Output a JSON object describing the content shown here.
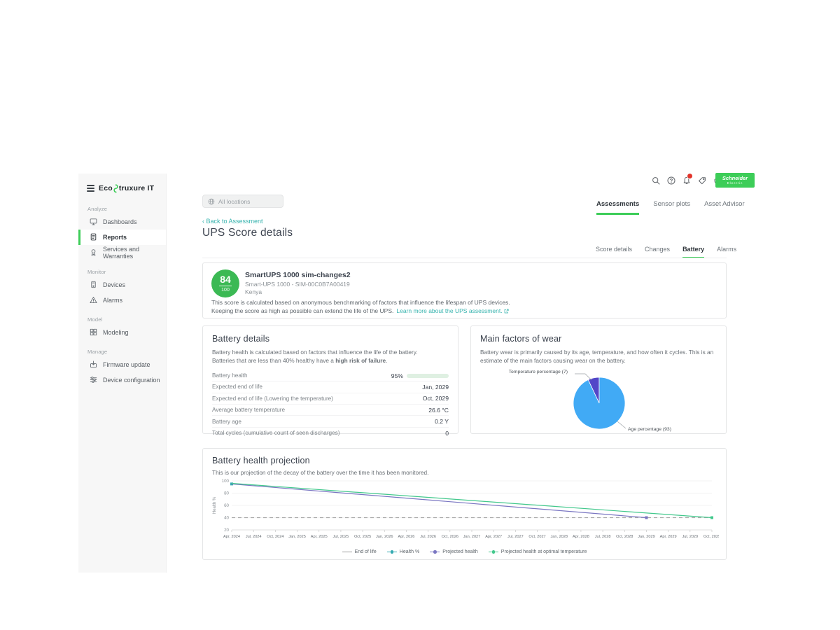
{
  "logo": {
    "part1": "Eco",
    "part2": "truxure IT"
  },
  "header": {
    "icons": [
      {
        "name": "search-icon"
      },
      {
        "name": "help-icon"
      },
      {
        "name": "notifications-icon",
        "badge": true
      },
      {
        "name": "feedback-icon"
      },
      {
        "name": "settings-icon"
      },
      {
        "name": "account-avatar"
      }
    ],
    "brand_line1": "Schneider",
    "brand_line2": "Electric",
    "brand_color": "#3dcd58"
  },
  "sidebar": {
    "sections": [
      {
        "label": "Analyze",
        "items": [
          {
            "label": "Dashboards",
            "icon": "dashboards-icon",
            "active": false
          },
          {
            "label": "Reports",
            "icon": "reports-icon",
            "active": true
          },
          {
            "label": "Services and Warranties",
            "icon": "services-warranties-icon",
            "active": false
          }
        ]
      },
      {
        "label": "Monitor",
        "items": [
          {
            "label": "Devices",
            "icon": "devices-icon",
            "active": false
          },
          {
            "label": "Alarms",
            "icon": "alarms-icon",
            "active": false
          }
        ]
      },
      {
        "label": "Model",
        "items": [
          {
            "label": "Modeling",
            "icon": "modeling-icon",
            "active": false
          }
        ]
      },
      {
        "label": "Manage",
        "items": [
          {
            "label": "Firmware update",
            "icon": "firmware-update-icon",
            "active": false
          },
          {
            "label": "Device configuration",
            "icon": "device-configuration-icon",
            "active": false
          }
        ]
      }
    ]
  },
  "toolbar": {
    "location_filter": "All locations"
  },
  "tabs": {
    "items": [
      "Assessments",
      "Sensor plots",
      "Asset Advisor"
    ],
    "active": 0
  },
  "page": {
    "back_link": "Back to Assessment",
    "title": "UPS Score details"
  },
  "subtabs": {
    "items": [
      "Score details",
      "Changes",
      "Battery",
      "Alarms"
    ],
    "active": 2
  },
  "score_card": {
    "score": "84",
    "score_max": "100",
    "device_name": "SmartUPS 1000 sim-changes2",
    "device_model": "Smart-UPS 1000 - SIM-00C0B7A00419",
    "location": "Kenya",
    "description_line1": "This score is calculated based on anonymous benchmarking of factors that influence the lifespan of UPS devices.",
    "description_line2": "Keeping the score as high as possible can extend the life of the UPS.",
    "learn_more_link": "Learn more about the UPS assessment."
  },
  "battery_details": {
    "title": "Battery details",
    "description_line1": "Battery health is calculated based on factors that influence the life of the battery.",
    "description_line2_pre": "Batteries that are less than 40% healthy have a ",
    "description_line2_bold": "high risk of failure",
    "description_line2_post": ".",
    "rows": [
      {
        "label": "Battery health",
        "value": "95%",
        "bar_percent": 95
      },
      {
        "label": "Expected end of life",
        "value": "Jan, 2029"
      },
      {
        "label": "Expected end of life (Lowering the temperature)",
        "value": "Oct, 2029"
      },
      {
        "label": "Average battery temperature",
        "value": "26.6 °C"
      },
      {
        "label": "Battery age",
        "value": "0.2 Y"
      },
      {
        "label": "Total cycles (cumulative count of seen discharges)",
        "value": "0"
      }
    ]
  },
  "wear_card": {
    "title": "Main factors of wear",
    "description": "Battery wear is primarily caused by its age, temperature, and how often it cycles. This is an estimate of the main factors causing wear on the battery."
  },
  "projection_card": {
    "title": "Battery health projection",
    "description": "This is our projection of the decay of the battery over the time it has been monitored."
  },
  "chart_data": [
    {
      "type": "pie",
      "title": "Main factors of wear",
      "slices": [
        {
          "label": "Temperature percentage (7)",
          "value": 7,
          "color": "#5246c8"
        },
        {
          "label": "Age percentage (93)",
          "value": 93,
          "color": "#41aaf5"
        }
      ],
      "start": "top",
      "direction": "counterclockwise"
    },
    {
      "type": "line",
      "title": "Battery health projection",
      "ylabel": "Health %",
      "ylim": [
        20,
        100
      ],
      "yticks": [
        20,
        40,
        60,
        80,
        100
      ],
      "x_labels": [
        "Apr, 2024",
        "Jul, 2024",
        "Oct, 2024",
        "Jan, 2025",
        "Apr, 2025",
        "Jul, 2025",
        "Oct, 2025",
        "Jan, 2026",
        "Apr, 2026",
        "Jul, 2026",
        "Oct, 2026",
        "Jan, 2027",
        "Apr, 2027",
        "Jul, 2027",
        "Oct, 2027",
        "Jan, 2028",
        "Apr, 2028",
        "Jul, 2028",
        "Oct, 2028",
        "Jan, 2029",
        "Apr, 2029",
        "Jul, 2029",
        "Oct, 2029"
      ],
      "legend_position": "bottom",
      "series": [
        {
          "name": "End of life",
          "color": "#a8a8a8",
          "style": "dashed",
          "points": [
            [
              0,
              40
            ],
            [
              22,
              40
            ]
          ],
          "marker": "none"
        },
        {
          "name": "Health %",
          "color": "#35aab2",
          "style": "solid",
          "points": [
            [
              0,
              95
            ]
          ],
          "marker": "all"
        },
        {
          "name": "Projected health",
          "color": "#7a76c2",
          "style": "solid",
          "points": [
            [
              0,
              95
            ],
            [
              19,
              40
            ]
          ],
          "marker": "end"
        },
        {
          "name": "Projected health at optimal temperature",
          "color": "#42c88c",
          "style": "solid",
          "points": [
            [
              0,
              96
            ],
            [
              22,
              40
            ]
          ],
          "marker": "end"
        }
      ]
    }
  ],
  "colors": {
    "accent_green": "#3dcd58",
    "link_teal": "#36b3ae",
    "bar_green": "#17813d",
    "badge_red": "#e2332a"
  }
}
